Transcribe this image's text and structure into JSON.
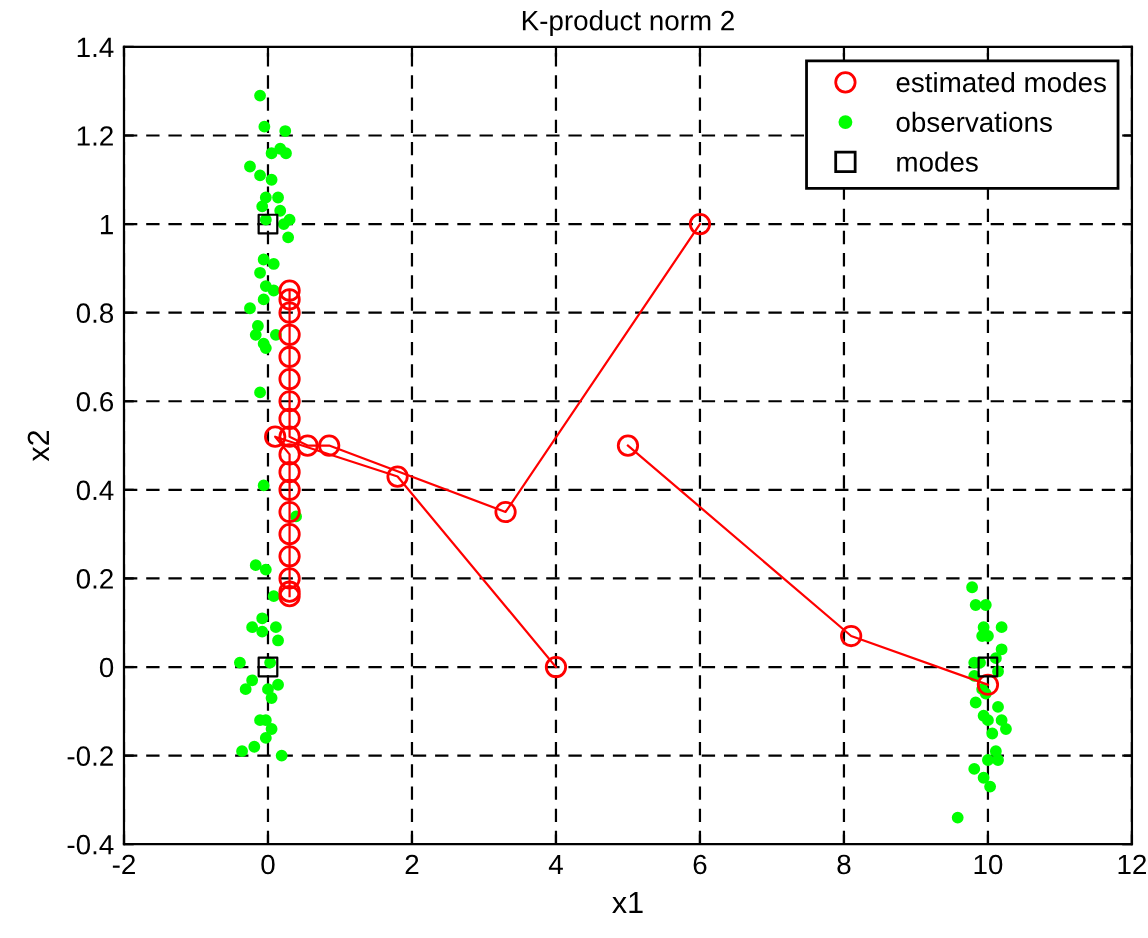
{
  "chart_data": {
    "type": "line",
    "title": "K-product norm 2",
    "xlabel": "x1",
    "ylabel": "x2",
    "xlim": [
      -2,
      12
    ],
    "xticks": [
      -2,
      0,
      2,
      4,
      6,
      8,
      10,
      12
    ],
    "ylim": [
      -0.4,
      1.4
    ],
    "yticks": [
      -0.4,
      -0.2,
      0,
      0.2,
      0.4,
      0.6,
      0.8,
      1,
      1.2,
      1.4
    ],
    "grid": true,
    "legend": "top right",
    "series": [
      {
        "name": "estimated modes",
        "marker": "circle",
        "color": "#ff0000",
        "x": [
          6,
          3.3,
          0.85,
          0.55,
          0.3,
          0.3,
          0.3,
          0.3,
          0.3,
          0.3,
          0.3,
          0.3,
          0.3
        ],
        "values": [
          1.0,
          0.35,
          0.5,
          0.5,
          0.52,
          0.56,
          0.6,
          0.65,
          0.7,
          0.75,
          0.8,
          0.83,
          0.85
        ]
      },
      {
        "marker": "circle",
        "color": "#ff0000",
        "x": [
          4,
          1.8,
          0.1,
          0.3,
          0.3,
          0.3,
          0.3,
          0.3,
          0.3,
          0.3,
          0.3,
          0.3
        ],
        "values": [
          0,
          0.43,
          0.52,
          0.48,
          0.44,
          0.4,
          0.35,
          0.3,
          0.25,
          0.2,
          0.17,
          0.16
        ]
      },
      {
        "marker": "circle",
        "color": "#ff0000",
        "x": [
          5,
          8.1,
          10
        ],
        "values": [
          0.5,
          0.07,
          -0.04
        ]
      },
      {
        "name": "observations",
        "type": "scatter",
        "marker": "circle",
        "color": "#00ff00",
        "x": [
          -0.11,
          -0.05,
          0.24,
          0.05,
          0.17,
          0.25,
          -0.25,
          -0.11,
          0.05,
          -0.03,
          0.14,
          -0.08,
          0.17,
          -0.03,
          0.3,
          0.22,
          0.28,
          -0.06,
          0.08,
          -0.11,
          -0.03,
          0.08,
          -0.06,
          -0.25,
          -0.14,
          -0.17,
          0.11,
          -0.06,
          -0.03,
          -0.11,
          -0.06,
          0.39,
          -0.17,
          -0.03,
          0.08,
          -0.08,
          -0.22,
          0.11,
          -0.08,
          0.14,
          -0.39,
          0.03,
          -0.22,
          0.14,
          -0.31,
          0.0,
          0.05,
          -0.03,
          -0.11,
          0.05,
          -0.03,
          -0.19,
          -0.36,
          0.19,
          9.78,
          9.83,
          9.97,
          9.94,
          10.19,
          9.92,
          10.0,
          10.19,
          10.11,
          9.81,
          9.89,
          10.14,
          9.81,
          9.92,
          9.97,
          9.83,
          10.14,
          9.94,
          10.19,
          10.0,
          10.25,
          10.06,
          10.11,
          10.0,
          10.14,
          9.81,
          9.94,
          10.03,
          9.58
        ],
        "values": [
          1.29,
          1.22,
          1.21,
          1.16,
          1.17,
          1.16,
          1.13,
          1.11,
          1.1,
          1.06,
          1.06,
          1.04,
          1.03,
          1.01,
          1.01,
          1.0,
          0.97,
          0.92,
          0.91,
          0.89,
          0.86,
          0.85,
          0.83,
          0.81,
          0.77,
          0.75,
          0.75,
          0.73,
          0.72,
          0.62,
          0.41,
          0.34,
          0.23,
          0.22,
          0.16,
          0.11,
          0.09,
          0.09,
          0.08,
          0.06,
          0.01,
          0.01,
          -0.03,
          -0.04,
          -0.05,
          -0.05,
          -0.07,
          -0.12,
          -0.12,
          -0.14,
          -0.16,
          -0.18,
          -0.19,
          -0.2,
          0.18,
          0.14,
          0.14,
          0.09,
          0.09,
          0.07,
          0.07,
          0.04,
          0.02,
          0.01,
          0.01,
          -0.01,
          -0.02,
          -0.05,
          -0.06,
          -0.08,
          -0.09,
          -0.11,
          -0.12,
          -0.12,
          -0.14,
          -0.15,
          -0.19,
          -0.21,
          -0.21,
          -0.23,
          -0.25,
          -0.27,
          -0.34
        ]
      },
      {
        "name": "modes",
        "type": "scatter",
        "marker": "square",
        "color": "#000000",
        "x": [
          0,
          0,
          10
        ],
        "values": [
          1,
          0,
          0
        ]
      }
    ]
  }
}
